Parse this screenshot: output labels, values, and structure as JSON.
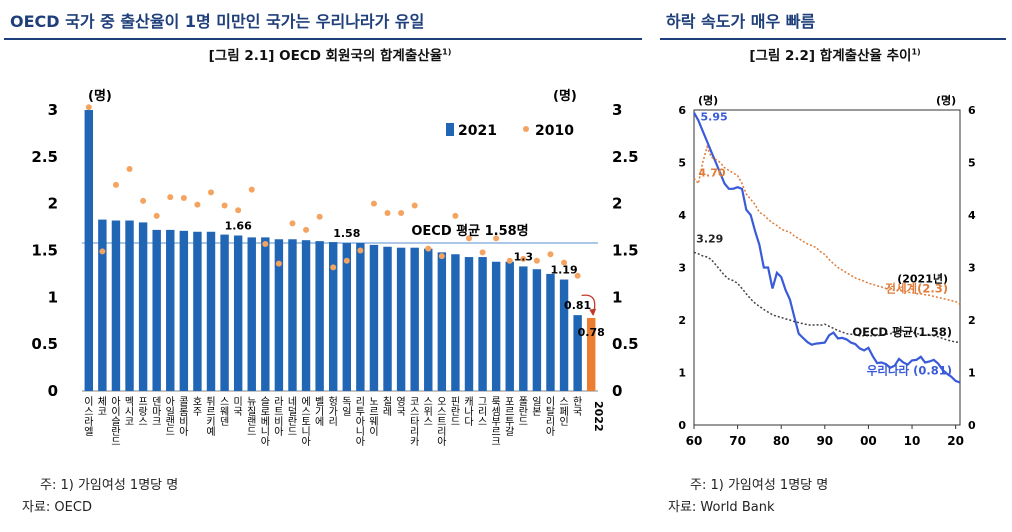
{
  "header": {
    "left_title": "OECD 국가 중 출산율이 1명 미만인 국가는 우리나라가 유일",
    "right_title": "하락 속도가 매우 빠름"
  },
  "figure1": {
    "title": "[그림 2.1] OECD 회원국의 합계출산율",
    "title_sup": "1)",
    "note": "주: 1) 가임여성 1명당 명",
    "source": "자료: OECD"
  },
  "figure2": {
    "title": "[그림 2.2] 합계출산율 추이",
    "title_sup": "1)",
    "note": "주: 1) 가임여성 1명당 명",
    "source": "자료: World Bank"
  },
  "colors": {
    "bar": "#2066b5",
    "bar_2022": "#ed7d31",
    "dot_2010": "#f4a460",
    "korea_line": "#3a5bd9",
    "world_line": "#e07b39",
    "oecd_line": "#444444",
    "heading": "#1f3f7a"
  },
  "chart_data": [
    {
      "type": "bar",
      "unit_left": "(명)",
      "unit_right": "(명)",
      "ylim": [
        0,
        3
      ],
      "yticks": [
        "0",
        "0.5",
        "1",
        "1.5",
        "2",
        "2.5",
        "3"
      ],
      "categories": [
        "이스라엘",
        "체코",
        "아이슬란드",
        "멕시코",
        "프랑스",
        "덴마크",
        "아일랜드",
        "콜롬비아",
        "호주",
        "튀르키예",
        "스웨덴",
        "미국",
        "뉴질랜드",
        "슬로베니아",
        "라트비아",
        "네덜란드",
        "에스토니아",
        "벨기에",
        "헝가리",
        "독일",
        "리투아니아",
        "노르웨이",
        "칠레",
        "영국",
        "코스타리카",
        "스위스",
        "오스트리아",
        "핀란드",
        "캐나다",
        "그리스",
        "룩셈부르크",
        "포르투갈",
        "폴란드",
        "일본",
        "이탈리아",
        "스페인",
        "한국",
        "2022"
      ],
      "series": [
        {
          "name": "2021",
          "values": [
            3.0,
            1.83,
            1.82,
            1.82,
            1.8,
            1.72,
            1.72,
            1.71,
            1.7,
            1.7,
            1.67,
            1.66,
            1.64,
            1.64,
            1.62,
            1.62,
            1.61,
            1.6,
            1.59,
            1.58,
            1.58,
            1.56,
            1.54,
            1.53,
            1.53,
            1.52,
            1.48,
            1.46,
            1.43,
            1.43,
            1.38,
            1.38,
            1.33,
            1.3,
            1.25,
            1.19,
            0.81,
            0.78
          ]
        },
        {
          "name": "2010",
          "values": [
            3.03,
            1.49,
            2.2,
            2.37,
            2.03,
            1.87,
            2.07,
            2.06,
            1.99,
            2.12,
            1.98,
            1.93,
            2.15,
            1.57,
            1.36,
            1.79,
            1.72,
            1.86,
            1.32,
            1.39,
            1.5,
            2.0,
            1.9,
            1.9,
            1.98,
            1.52,
            1.44,
            1.87,
            1.63,
            1.48,
            1.63,
            1.39,
            1.41,
            1.39,
            1.46,
            1.37,
            1.23,
            null
          ]
        }
      ],
      "data_labels": [
        {
          "index": 11,
          "text": "1.66"
        },
        {
          "index": 19,
          "text": "1.58"
        },
        {
          "index": 32,
          "text": "1.3"
        },
        {
          "index": 35,
          "text": "1.19"
        },
        {
          "index": 36,
          "text": "0.81"
        },
        {
          "index": 37,
          "text": "0.78"
        }
      ],
      "reference_line": {
        "value": 1.58,
        "label": "OECD 평균 1.58명"
      }
    },
    {
      "type": "line",
      "unit_left": "(명)",
      "unit_right": "(명)",
      "ylim": [
        0,
        6
      ],
      "yticks": [
        "0",
        "1",
        "2",
        "3",
        "4",
        "5",
        "6"
      ],
      "xlim": [
        1960,
        2021
      ],
      "xticks": [
        "60",
        "70",
        "80",
        "90",
        "00",
        "10",
        "20"
      ],
      "annotation_year": "(2021년)",
      "start_labels": [
        {
          "series": 0,
          "text": "5.95"
        },
        {
          "series": 1,
          "text": "4.70"
        },
        {
          "series": 2,
          "text": "3.29"
        }
      ],
      "series": [
        {
          "name": "우리나라 (0.81)",
          "x": [
            1960,
            1961,
            1962,
            1963,
            1964,
            1965,
            1966,
            1967,
            1968,
            1969,
            1970,
            1971,
            1972,
            1973,
            1974,
            1975,
            1976,
            1977,
            1978,
            1979,
            1980,
            1981,
            1982,
            1983,
            1984,
            1985,
            1986,
            1987,
            1988,
            1989,
            1990,
            1991,
            1992,
            1993,
            1994,
            1995,
            1996,
            1997,
            1998,
            1999,
            2000,
            2001,
            2002,
            2003,
            2004,
            2005,
            2006,
            2007,
            2008,
            2009,
            2010,
            2011,
            2012,
            2013,
            2014,
            2015,
            2016,
            2017,
            2018,
            2019,
            2020,
            2021
          ],
          "y": [
            5.95,
            5.8,
            5.6,
            5.4,
            5.2,
            5.0,
            4.8,
            4.6,
            4.5,
            4.5,
            4.53,
            4.5,
            4.1,
            4.0,
            3.7,
            3.43,
            3.0,
            3.0,
            2.6,
            2.9,
            2.82,
            2.57,
            2.39,
            2.06,
            1.74,
            1.66,
            1.58,
            1.53,
            1.55,
            1.56,
            1.57,
            1.71,
            1.76,
            1.65,
            1.66,
            1.63,
            1.57,
            1.54,
            1.46,
            1.42,
            1.47,
            1.31,
            1.18,
            1.19,
            1.16,
            1.09,
            1.13,
            1.26,
            1.19,
            1.15,
            1.23,
            1.24,
            1.3,
            1.19,
            1.21,
            1.24,
            1.17,
            1.05,
            0.98,
            0.92,
            0.84,
            0.81
          ]
        },
        {
          "name": "전세계(2.3)",
          "x": [
            1960,
            1961,
            1962,
            1963,
            1964,
            1965,
            1966,
            1967,
            1968,
            1969,
            1970,
            1971,
            1972,
            1973,
            1974,
            1975,
            1976,
            1977,
            1978,
            1979,
            1980,
            1981,
            1982,
            1983,
            1984,
            1985,
            1986,
            1987,
            1988,
            1989,
            1990,
            1991,
            1992,
            1993,
            1994,
            1995,
            1996,
            1997,
            1998,
            1999,
            2000,
            2001,
            2002,
            2003,
            2004,
            2005,
            2006,
            2007,
            2008,
            2009,
            2010,
            2011,
            2012,
            2013,
            2014,
            2015,
            2016,
            2017,
            2018,
            2019,
            2020,
            2021
          ],
          "y": [
            4.7,
            4.6,
            5.0,
            5.3,
            5.1,
            5.06,
            5.0,
            4.9,
            4.85,
            4.8,
            4.75,
            4.6,
            4.4,
            4.3,
            4.2,
            4.05,
            4.0,
            3.92,
            3.85,
            3.8,
            3.73,
            3.7,
            3.67,
            3.6,
            3.55,
            3.5,
            3.45,
            3.42,
            3.38,
            3.3,
            3.25,
            3.15,
            3.07,
            3.0,
            2.95,
            2.9,
            2.85,
            2.8,
            2.77,
            2.74,
            2.7,
            2.68,
            2.65,
            2.63,
            2.6,
            2.58,
            2.57,
            2.56,
            2.55,
            2.53,
            2.52,
            2.5,
            2.5,
            2.48,
            2.47,
            2.45,
            2.43,
            2.41,
            2.39,
            2.37,
            2.35,
            2.3
          ]
        },
        {
          "name": "OECD 평균(1.58)",
          "x": [
            1960,
            1961,
            1962,
            1963,
            1964,
            1965,
            1966,
            1967,
            1968,
            1969,
            1970,
            1971,
            1972,
            1973,
            1974,
            1975,
            1976,
            1977,
            1978,
            1979,
            1980,
            1981,
            1982,
            1983,
            1984,
            1985,
            1986,
            1987,
            1988,
            1989,
            1990,
            1991,
            1992,
            1993,
            1994,
            1995,
            1996,
            1997,
            1998,
            1999,
            2000,
            2001,
            2002,
            2003,
            2004,
            2005,
            2006,
            2007,
            2008,
            2009,
            2010,
            2011,
            2012,
            2013,
            2014,
            2015,
            2016,
            2017,
            2018,
            2019,
            2020,
            2021
          ],
          "y": [
            3.29,
            3.26,
            3.22,
            3.2,
            3.15,
            3.05,
            2.95,
            2.85,
            2.78,
            2.75,
            2.7,
            2.6,
            2.5,
            2.4,
            2.32,
            2.26,
            2.2,
            2.15,
            2.1,
            2.07,
            2.05,
            2.02,
            2.0,
            1.97,
            1.95,
            1.93,
            1.91,
            1.9,
            1.91,
            1.9,
            1.92,
            1.88,
            1.84,
            1.8,
            1.77,
            1.74,
            1.73,
            1.72,
            1.7,
            1.7,
            1.7,
            1.7,
            1.7,
            1.71,
            1.73,
            1.74,
            1.76,
            1.79,
            1.8,
            1.78,
            1.77,
            1.74,
            1.73,
            1.71,
            1.71,
            1.7,
            1.68,
            1.65,
            1.62,
            1.6,
            1.58,
            1.58
          ]
        }
      ]
    }
  ]
}
